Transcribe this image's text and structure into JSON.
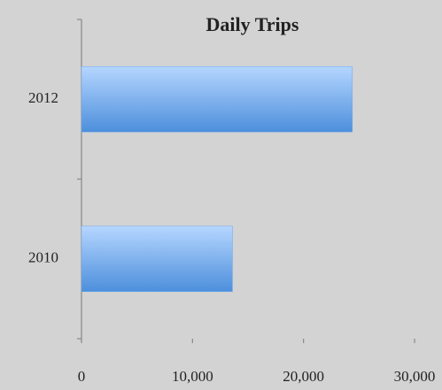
{
  "chart_data": {
    "type": "hbar",
    "title": "Daily Trips",
    "categories": [
      "2010",
      "2012"
    ],
    "values": [
      13600,
      24400
    ],
    "color": "#6fa8ec",
    "xlim": [
      0,
      30000
    ],
    "xticks": [
      0,
      {
        "value": 10000,
        "label": "10,000"
      },
      {
        "value": 20000,
        "label": "20,000"
      },
      {
        "value": 30000,
        "label": "30,000"
      }
    ]
  }
}
